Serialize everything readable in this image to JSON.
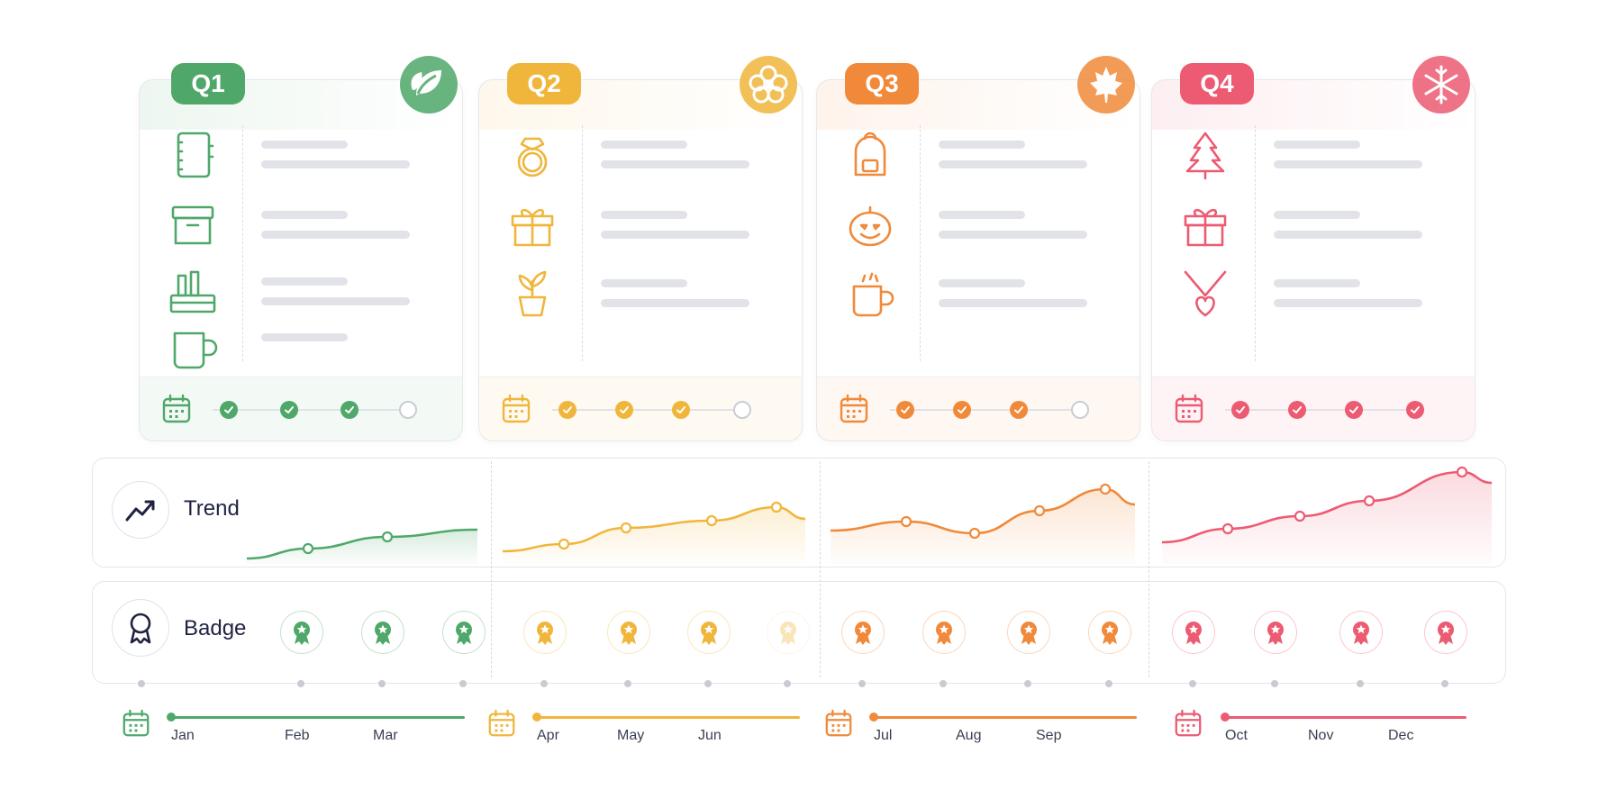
{
  "quarters": [
    {
      "label": "Q1",
      "color": "#4fa86a",
      "season_icon": "leaf-icon",
      "items": [
        {
          "icon": "notebook-icon"
        },
        {
          "icon": "storage-box-icon"
        },
        {
          "icon": "pencil-holder-icon"
        },
        {
          "icon": "mug-icon"
        }
      ],
      "progress": [
        1,
        1,
        1,
        0
      ],
      "trend_icon": "trend-line",
      "badges": [
        1,
        1,
        1
      ],
      "months": [
        "Jan",
        "Feb",
        "Mar"
      ]
    },
    {
      "label": "Q2",
      "color": "#f0b63c",
      "season_icon": "flower-icon",
      "items": [
        {
          "icon": "diamond-ring-icon"
        },
        {
          "icon": "gift-icon"
        },
        {
          "icon": "potted-plant-icon"
        }
      ],
      "progress": [
        1,
        1,
        1,
        0
      ],
      "badges": [
        1,
        1,
        1,
        0.35
      ],
      "months": [
        "Apr",
        "May",
        "Jun"
      ]
    },
    {
      "label": "Q3",
      "color": "#f08a3a",
      "season_icon": "maple-leaf-icon",
      "items": [
        {
          "icon": "backpack-icon"
        },
        {
          "icon": "pumpkin-icon"
        },
        {
          "icon": "hot-drink-icon"
        }
      ],
      "progress": [
        1,
        1,
        1,
        0
      ],
      "badges": [
        1,
        1,
        1,
        1
      ],
      "months": [
        "Jul",
        "Aug",
        "Sep"
      ]
    },
    {
      "label": "Q4",
      "color": "#ec5b72",
      "season_icon": "snowflake-icon",
      "items": [
        {
          "icon": "christmas-tree-icon"
        },
        {
          "icon": "gift-icon"
        },
        {
          "icon": "heart-necklace-icon"
        }
      ],
      "progress": [
        1,
        1,
        1,
        1
      ],
      "badges": [
        1,
        1,
        1,
        1
      ],
      "months": [
        "Oct",
        "Nov",
        "Dec"
      ]
    }
  ],
  "rows": {
    "trend_label": "Trend",
    "badge_label": "Badge"
  },
  "trend_values": [
    [
      12,
      22,
      32,
      42
    ],
    [
      28,
      40,
      52,
      63
    ],
    [
      45,
      55,
      50,
      72,
      100
    ],
    [
      48,
      58,
      72,
      100
    ]
  ]
}
